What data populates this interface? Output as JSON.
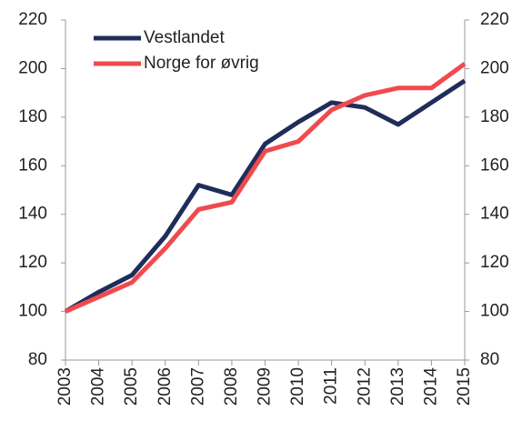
{
  "chart_data": {
    "type": "line",
    "categories": [
      "2003",
      "2004",
      "2005",
      "2006",
      "2007",
      "2008",
      "2009",
      "2010",
      "2011",
      "2012",
      "2013",
      "2014",
      "2015"
    ],
    "series": [
      {
        "name": "Vestlandet",
        "color": "#1f2d5a",
        "values": [
          100,
          108,
          115,
          131,
          152,
          148,
          169,
          178,
          186,
          184,
          177,
          186,
          195
        ]
      },
      {
        "name": "Norge for øvrig",
        "color": "#f04a4f",
        "values": [
          100,
          106,
          112,
          126,
          142,
          145,
          166,
          170,
          183,
          189,
          192,
          192,
          202
        ]
      }
    ],
    "ylim": [
      80,
      220
    ],
    "yticks": [
      80,
      100,
      120,
      140,
      160,
      180,
      200,
      220
    ],
    "y2lim": [
      80,
      220
    ],
    "y2ticks": [
      80,
      100,
      120,
      140,
      160,
      180,
      200,
      220
    ],
    "legend": "upper left",
    "grid": false
  }
}
